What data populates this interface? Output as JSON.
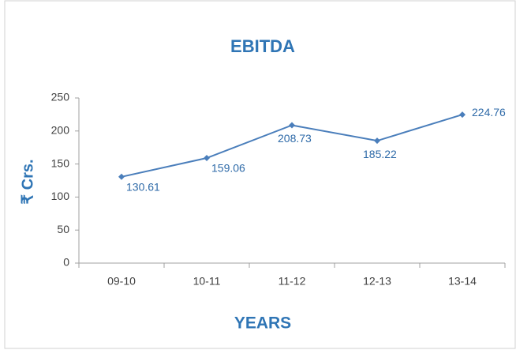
{
  "chart_data": {
    "type": "line",
    "title": "EBITDA",
    "x_label": "YEARS",
    "y_label": "₹ Crs.",
    "categories": [
      "09-10",
      "10-11",
      "11-12",
      "12-13",
      "13-14"
    ],
    "series": [
      {
        "name": "EBITDA",
        "color": "#4a7ebb",
        "values": [
          130.61,
          159.06,
          208.73,
          185.22,
          224.76
        ]
      }
    ],
    "ylim": [
      0,
      250
    ],
    "yticks": [
      0,
      50,
      100,
      150,
      200,
      250
    ],
    "grid": false,
    "legend": false
  }
}
